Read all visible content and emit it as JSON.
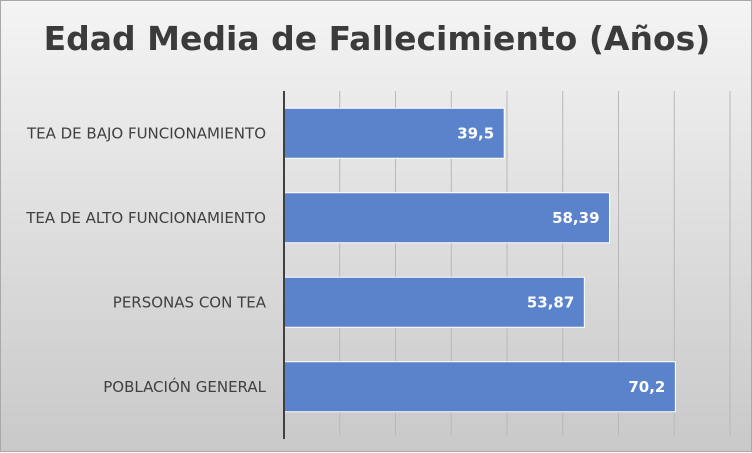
{
  "chart_data": {
    "type": "bar",
    "orientation": "horizontal",
    "title": "Edad Media de Fallecimiento (Años)",
    "categories": [
      "TEA DE BAJO FUNCIONAMIENTO",
      "TEA DE ALTO FUNCIONAMIENTO",
      "PERSONAS CON TEA",
      "POBLACIÓN GENERAL"
    ],
    "values": [
      39.5,
      58.39,
      53.87,
      70.2
    ],
    "value_labels": [
      "39,5",
      "58,39",
      "53,87",
      "70,2"
    ],
    "xlim": [
      0,
      80
    ],
    "grid": true,
    "legend": "none",
    "colors": {
      "bar": "#5b83cc",
      "bar_border": "#ffffff",
      "grid": "#b8b8b8",
      "axis": "#404040"
    }
  }
}
